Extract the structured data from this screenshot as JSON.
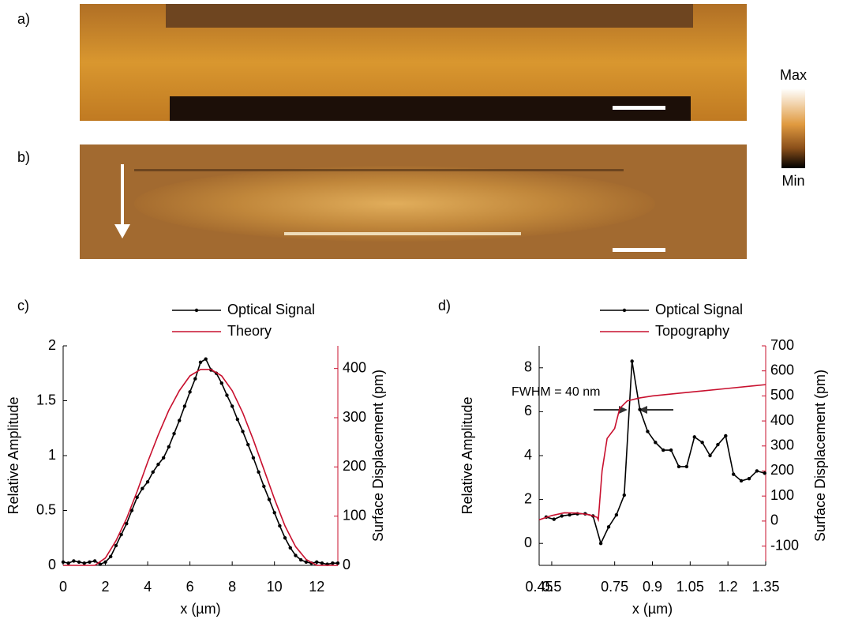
{
  "figure": {
    "panel_labels": [
      "a)",
      "b)"
    ],
    "colorbar": {
      "max": "Max",
      "min": "Min"
    }
  },
  "chart_data": [
    {
      "type": "line",
      "title": "c)",
      "xlabel": "x (µm)",
      "ylabel": "Relative Amplitude",
      "y2label": "Surface Displacement (pm)",
      "xlim": [
        0,
        13
      ],
      "xticks": [
        0,
        2,
        4,
        6,
        8,
        10,
        12
      ],
      "ylim": [
        0,
        2
      ],
      "yticks": [
        0,
        0.5,
        1,
        1.5,
        2
      ],
      "y2lim": [
        0,
        446
      ],
      "y2ticks": [
        0,
        100,
        200,
        300,
        400
      ],
      "series": [
        {
          "name": "Optical Signal",
          "color": "#000000",
          "marker": true,
          "x": [
            0,
            0.25,
            0.5,
            0.75,
            1,
            1.25,
            1.5,
            1.75,
            2,
            2.25,
            2.5,
            2.75,
            3,
            3.25,
            3.5,
            3.75,
            4,
            4.25,
            4.5,
            4.75,
            5,
            5.25,
            5.5,
            5.75,
            6,
            6.25,
            6.5,
            6.75,
            7,
            7.25,
            7.5,
            7.75,
            8,
            8.25,
            8.5,
            8.75,
            9,
            9.25,
            9.5,
            9.75,
            10,
            10.25,
            10.5,
            10.75,
            11,
            11.25,
            11.5,
            11.75,
            12,
            12.25,
            12.5,
            12.75,
            13
          ],
          "values": [
            0.03,
            0.02,
            0.04,
            0.03,
            0.02,
            0.03,
            0.04,
            0.01,
            0.03,
            0.08,
            0.18,
            0.28,
            0.38,
            0.5,
            0.62,
            0.7,
            0.76,
            0.85,
            0.92,
            0.98,
            1.08,
            1.2,
            1.32,
            1.45,
            1.58,
            1.7,
            1.85,
            1.88,
            1.78,
            1.75,
            1.66,
            1.55,
            1.45,
            1.33,
            1.22,
            1.1,
            0.98,
            0.85,
            0.72,
            0.6,
            0.48,
            0.36,
            0.25,
            0.16,
            0.09,
            0.05,
            0.03,
            0.02,
            0.03,
            0.02,
            0.01,
            0.02,
            0.02
          ]
        },
        {
          "name": "Theory",
          "color": "#c8102e",
          "axis": "y2",
          "x": [
            0,
            0.5,
            1,
            1.5,
            2,
            2.5,
            3,
            3.5,
            4,
            4.5,
            5,
            5.5,
            6,
            6.5,
            7,
            7.5,
            8,
            8.5,
            9,
            9.5,
            10,
            10.5,
            11,
            11.5,
            12,
            12.5,
            13
          ],
          "values": [
            0,
            0,
            0,
            0,
            15,
            50,
            95,
            150,
            210,
            265,
            315,
            355,
            385,
            398,
            398,
            385,
            355,
            310,
            255,
            195,
            135,
            80,
            38,
            12,
            0,
            0,
            0
          ]
        }
      ]
    },
    {
      "type": "line",
      "title": "d)",
      "xlabel": "x (µm)",
      "ylabel": "Relative Amplitude",
      "y2label": "Surface Displacement (pm)",
      "annotation": "FWHM = 40 nm",
      "xlim": [
        0.45,
        1.35
      ],
      "xticks": [
        0.45,
        0.5,
        0.75,
        0.9,
        1.05,
        1.2,
        1.35
      ],
      "ylim": [
        -1,
        9
      ],
      "yticks": [
        0,
        2,
        4,
        6,
        8
      ],
      "y2lim": [
        -177,
        700
      ],
      "y2ticks": [
        -100,
        0,
        100,
        200,
        300,
        400,
        500,
        600,
        700
      ],
      "series": [
        {
          "name": "Optical Signal",
          "color": "#000000",
          "marker": true,
          "x": [
            0.478,
            0.509,
            0.54,
            0.571,
            0.602,
            0.633,
            0.664,
            0.695,
            0.726,
            0.757,
            0.788,
            0.819,
            0.85,
            0.881,
            0.912,
            0.943,
            0.974,
            1.005,
            1.036,
            1.067,
            1.098,
            1.129,
            1.16,
            1.191,
            1.222,
            1.253,
            1.284,
            1.315,
            1.346
          ],
          "values": [
            1.2,
            1.1,
            1.25,
            1.3,
            1.35,
            1.35,
            1.25,
            0,
            0.75,
            1.3,
            2.2,
            8.3,
            6.1,
            5.1,
            4.6,
            4.25,
            4.25,
            3.5,
            3.5,
            4.85,
            4.6,
            4.0,
            4.5,
            4.9,
            3.15,
            2.85,
            2.95,
            3.3,
            3.2
          ]
        },
        {
          "name": "Topography",
          "color": "#c8102e",
          "axis": "y2",
          "x": [
            0.45,
            0.5,
            0.55,
            0.6,
            0.65,
            0.68,
            0.685,
            0.7,
            0.72,
            0.75,
            0.77,
            0.8,
            0.85,
            0.9,
            0.95,
            1.0,
            1.1,
            1.2,
            1.3,
            1.35
          ],
          "values": [
            5,
            22,
            33,
            32,
            25,
            15,
            5,
            200,
            330,
            370,
            450,
            480,
            492,
            500,
            505,
            510,
            520,
            530,
            540,
            545
          ]
        }
      ]
    }
  ]
}
